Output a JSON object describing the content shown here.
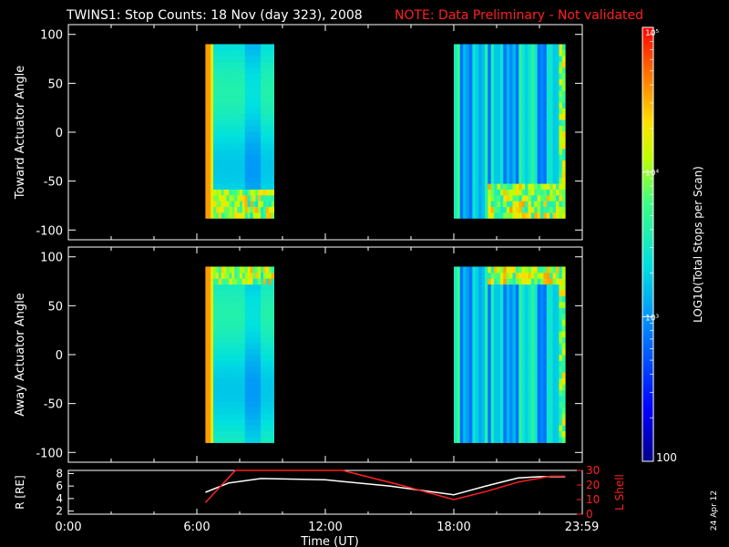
{
  "title": "TWINS1: Stop Counts: 18 Nov (day 323), 2008",
  "note": "NOTE: Data Preliminary - Not validated",
  "datestamp": "24 Apr 12",
  "colors": {
    "background": "#000000",
    "axes": "#ffffff",
    "note": "#ff0000",
    "lshell": "#ff0000",
    "radius": "#ffffff"
  },
  "colorbar": {
    "label": "LOG10(Total Stops per Scan)",
    "tick_labels": [
      "100",
      "10³",
      "10⁴",
      "10⁵"
    ],
    "tick_values": [
      100,
      1000,
      10000,
      100000
    ],
    "scale": "log",
    "range": [
      100,
      100000
    ],
    "colormap": "rainbow (blue-cyan-green-yellow-red)"
  },
  "chart_data": [
    {
      "type": "heatmap",
      "ylabel": "Toward Actuator Angle",
      "xlim": [
        0,
        24
      ],
      "ylim": [
        -110,
        110
      ],
      "y_ticks": [
        100,
        50,
        0,
        -50,
        -100
      ],
      "y_tick_labels": [
        "100",
        "50",
        "0",
        "-50",
        "-100"
      ],
      "data_windows_hours": [
        [
          6.4,
          9.6
        ],
        [
          18.0,
          23.2
        ]
      ],
      "data_angle_range": [
        -88,
        90
      ],
      "log_counts_description": "approx. log10 values 3.3-4.6; high (red/orange) near 6.4-6.8h, mixed blue/cyan elsewhere"
    },
    {
      "type": "heatmap",
      "ylabel": "Away Actuator Angle",
      "xlim": [
        0,
        24
      ],
      "ylim": [
        -110,
        110
      ],
      "y_ticks": [
        100,
        50,
        0,
        -50,
        -100
      ],
      "y_tick_labels": [
        "100",
        "50",
        "0",
        "-50",
        "-100"
      ],
      "data_windows_hours": [
        [
          6.4,
          9.6
        ],
        [
          18.0,
          23.2
        ]
      ],
      "data_angle_range": [
        -90,
        90
      ]
    },
    {
      "type": "line",
      "ylabel": "R [RE]",
      "ylabel_right": "L Shell",
      "xlabel": "Time (UT)",
      "x_tick_labels": [
        "0:00",
        "6:00",
        "12:00",
        "18:00",
        "23:59"
      ],
      "x_ticks_hours": [
        0,
        6,
        12,
        18,
        23.98
      ],
      "xlim": [
        0,
        24
      ],
      "ylim_left": [
        1.5,
        8.5
      ],
      "ylim_right": [
        0,
        30
      ],
      "y_ticks_left": [
        2,
        4,
        6,
        8
      ],
      "y_ticks_right": [
        0,
        10,
        20,
        30
      ],
      "series": [
        {
          "name": "R [RE]",
          "axis": "left",
          "x": [
            6.4,
            7.5,
            9.0,
            12.0,
            15.0,
            18.0,
            19.5,
            21.0,
            22.0,
            23.2
          ],
          "y": [
            5.0,
            6.5,
            7.2,
            7.0,
            6.0,
            4.6,
            6.0,
            7.3,
            7.5,
            7.5
          ]
        },
        {
          "name": "L Shell",
          "axis": "right",
          "x": [
            6.4,
            7.8,
            12.8,
            15.5,
            18.0,
            19.5,
            21.0,
            22.5,
            23.2
          ],
          "y": [
            8.0,
            30.0,
            30.0,
            20.0,
            10.0,
            15.5,
            22.0,
            26.0,
            26.0
          ]
        }
      ]
    }
  ]
}
